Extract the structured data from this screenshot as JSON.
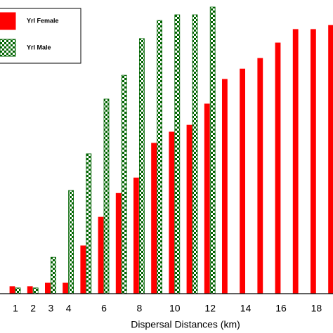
{
  "chart_data": {
    "type": "bar",
    "x_label": "Dispersal Distances  (km)",
    "categories": [
      "1",
      "2",
      "3",
      "4",
      null,
      "6",
      null,
      "8",
      null,
      "10",
      null,
      "12",
      null,
      "14",
      null,
      "16",
      null,
      "18",
      null
    ],
    "series": [
      {
        "name": "Yrl Female",
        "color": "#ff0000",
        "pattern": "solid",
        "values": [
          2.5,
          2.5,
          3.7,
          3.7,
          16.7,
          26.7,
          35,
          40.4,
          52.5,
          56.4,
          58.8,
          66.2,
          74.8,
          78.4,
          82.1,
          87.5,
          92.2,
          92.2,
          93.6
        ]
      },
      {
        "name": "Yrl Male",
        "color": "#006400",
        "pattern": "checker",
        "values": [
          2,
          2,
          12.7,
          36,
          48.8,
          67.9,
          76.2,
          89,
          95.3,
          97.3,
          97.3,
          100,
          null,
          null,
          null,
          null,
          null,
          null,
          null
        ]
      }
    ],
    "ylim": [
      0,
      100
    ],
    "legend": "upper left"
  }
}
